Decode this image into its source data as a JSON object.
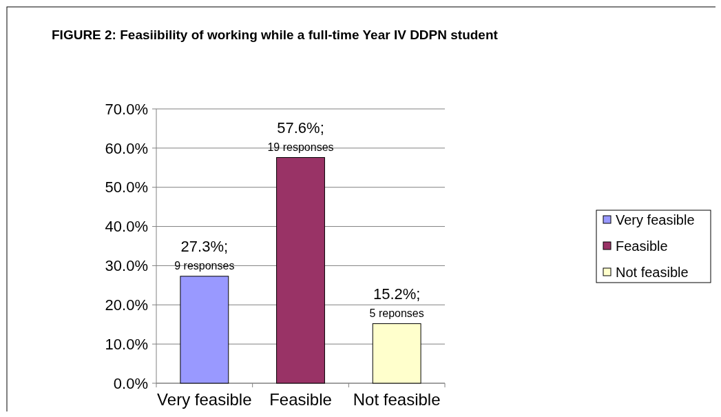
{
  "chart_data": {
    "type": "bar",
    "title": "FIGURE 2: Feasiibility of working while a full-time Year IV DDPN student",
    "categories": [
      "Very feasible",
      "Feasible",
      "Not feasible"
    ],
    "stacked": true,
    "series": [
      {
        "name": "Very feasible",
        "color": "#9999ff",
        "values": [
          27.3,
          null,
          null
        ],
        "value_labels": [
          "27.3%;",
          null,
          null
        ]
      },
      {
        "name": "Feasible",
        "color": "#993366",
        "values": [
          null,
          57.6,
          null
        ],
        "value_labels": [
          null,
          "57.6%;",
          null
        ]
      },
      {
        "name": "Not feasible",
        "color": "#ffffcc",
        "values": [
          null,
          null,
          15.2
        ],
        "value_labels": [
          null,
          null,
          "15.2%;"
        ]
      }
    ],
    "annotations": [
      {
        "text": "9 responses",
        "x": "Very feasible",
        "y": 27.3
      },
      {
        "text": "19 responses",
        "x": "Feasible",
        "y": 57.6
      },
      {
        "text": "5 reponses",
        "x": "Not feasible",
        "y": 15.2
      }
    ],
    "ylim": [
      0,
      70
    ],
    "yticks": [
      {
        "value": 0,
        "label": "0.0%"
      },
      {
        "value": 10,
        "label": "10.0%"
      },
      {
        "value": 20,
        "label": "20.0%"
      },
      {
        "value": 30,
        "label": "30.0%"
      },
      {
        "value": 40,
        "label": "40.0%"
      },
      {
        "value": 50,
        "label": "50.0%"
      },
      {
        "value": 60,
        "label": "60.0%"
      },
      {
        "value": 70,
        "label": "70.0%"
      }
    ],
    "grid": "y",
    "legend": "right"
  }
}
